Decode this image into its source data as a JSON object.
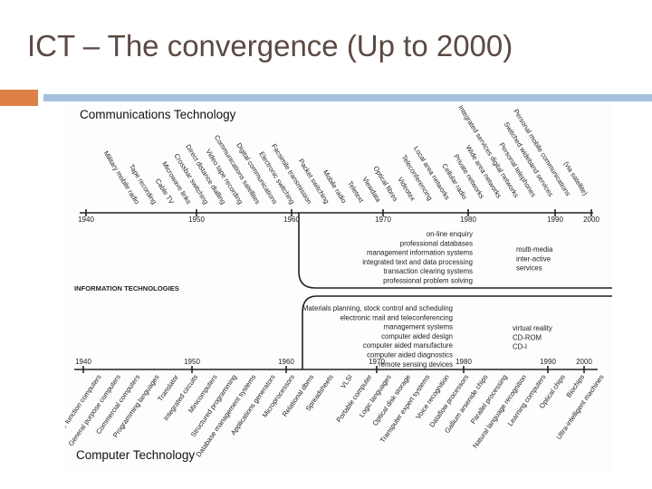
{
  "title": "ICT – The convergence (Up to 2000)",
  "diagram": {
    "top_heading": "Communications  Technology",
    "bottom_heading": "Computer Technology",
    "side_label": "INFORMATION TECHNOLOGIES",
    "top_years": [
      "1940",
      "1950",
      "1960",
      "1970",
      "1980",
      "1990",
      "2000"
    ],
    "bottom_years": [
      "1940",
      "1950",
      "1960",
      "1970",
      "1980",
      "1990",
      "2000"
    ],
    "top_labels": [
      "Military mobile radio",
      "Tape recording",
      "Cable TV",
      "Microwave links",
      "Crossbar switching",
      "Direct distance dialling",
      "Video tape recording",
      "Communications satellites",
      "Digital communications",
      "Electronic switching",
      "Facsimile transmission",
      "Packet switching",
      "Mobile radio",
      "Teletext",
      "Viewdata",
      "Optical fibres",
      "Videotex",
      "Teleconferencing",
      "Local area networks",
      "Cellular radio",
      "Private networks",
      "Wide area networks",
      "Integrated services digital networks",
      "Personal telephones",
      "Switched wideband services",
      "Personal mobile communications",
      "(via satellite)"
    ],
    "bottom_labels": [
      "Single function computers",
      "General purpose computers",
      "Commercial computers",
      "Programming languages",
      "Translator",
      "Integrated circuits",
      "Minicomputers",
      "Structured programming",
      "Database management systems",
      "Applications generators",
      "Microprocessors",
      "Relational dbms",
      "Spreadsheets",
      "VLSI",
      "Portable computer",
      "Logic languages",
      "Optical disk storage",
      "Transputer expert systems",
      "Voice recognition",
      "Dataflow processors",
      "Gallium arsenide chips",
      "Parallel processing",
      "Natural language recognition",
      "Learning computers",
      "Optical chips",
      "Biochips",
      "Ultra-intelligent machines"
    ],
    "info_block_1": [
      "on-line enquiry",
      "professional databases",
      "management information systems",
      "integrated text and data processing",
      "transaction clearing systems",
      "professional problem solving"
    ],
    "info_block_2": [
      "multi-media",
      "inter-active",
      "services"
    ],
    "info_block_3": [
      "Materials planning, stock control and scheduling",
      "electronic mail and teleconferencing",
      "management systems",
      "computer aided design",
      "computer aided manufacture",
      "computer aided diagnostics",
      "remote sensing devices"
    ],
    "info_block_4": [
      "virtual reality",
      "CD-ROM",
      "CD-I"
    ]
  }
}
